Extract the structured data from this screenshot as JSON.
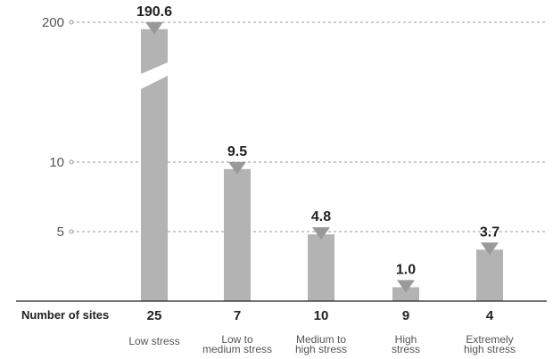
{
  "chart_data": {
    "type": "bar",
    "categories": [
      [
        "Low stress"
      ],
      [
        "Low to",
        "medium stress"
      ],
      [
        "Medium to",
        "high stress"
      ],
      [
        "High",
        "stress"
      ],
      [
        "Extremely",
        "high stress"
      ]
    ],
    "values": [
      190.6,
      9.5,
      4.8,
      1.0,
      3.7
    ],
    "value_labels": [
      "190.6",
      "9.5",
      "4.8",
      "1.0",
      "3.7"
    ],
    "y_ticks": [
      200,
      10,
      5
    ],
    "axis_break": true,
    "site_counts_title": "Number of sites",
    "site_counts": [
      "25",
      "7",
      "10",
      "9",
      "4"
    ],
    "grid": "dashed",
    "colors": {
      "bar": "#b3b3b3",
      "marker": "#999999",
      "grid": "#999999",
      "text": "#222222",
      "muted": "#555555"
    }
  }
}
